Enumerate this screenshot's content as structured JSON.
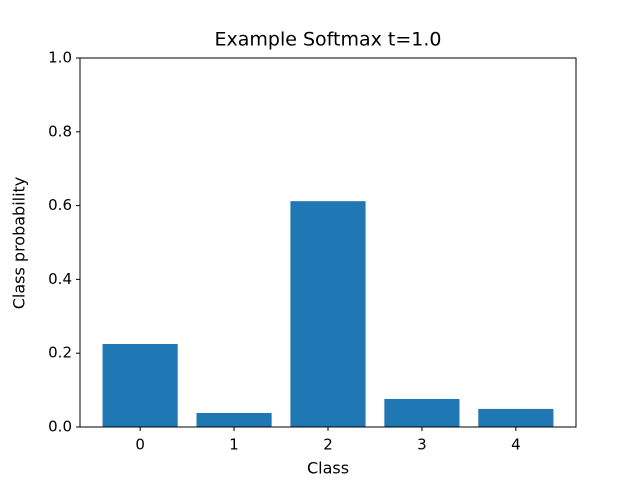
{
  "chart_data": {
    "type": "bar",
    "title": "Example Softmax t=1.0",
    "x_label": "Class",
    "y_label": "Class probability",
    "categories": [
      "0",
      "1",
      "2",
      "3",
      "4"
    ],
    "values": [
      0.225,
      0.038,
      0.612,
      0.076,
      0.049
    ],
    "color": "#1f77b4",
    "ylim": [
      0,
      1
    ],
    "yticks": [
      {
        "value": 0,
        "label": "0.0"
      },
      0.2,
      0.4,
      0.6,
      0.8,
      {
        "value": 1,
        "label": "1.0"
      }
    ],
    "grid": false
  }
}
